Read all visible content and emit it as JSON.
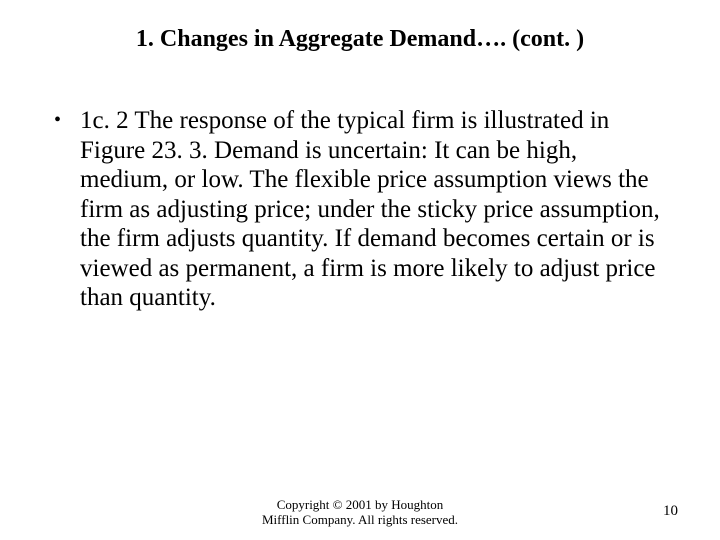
{
  "title": "1. Changes in Aggregate Demand…. (cont. )",
  "bullet": {
    "marker": "•",
    "text": "1c. 2 The response of the typical firm is illustrated in Figure 23. 3. Demand is uncertain: It can be high, medium, or low. The flexible price assumption views the firm as adjusting price; under the sticky price assumption, the firm adjusts quantity. If demand becomes certain or is viewed as permanent, a firm is more likely to adjust price than quantity."
  },
  "footer": {
    "line1": "Copyright © 2001 by Houghton",
    "line2": "Mifflin Company. All rights reserved."
  },
  "page_number": "10"
}
